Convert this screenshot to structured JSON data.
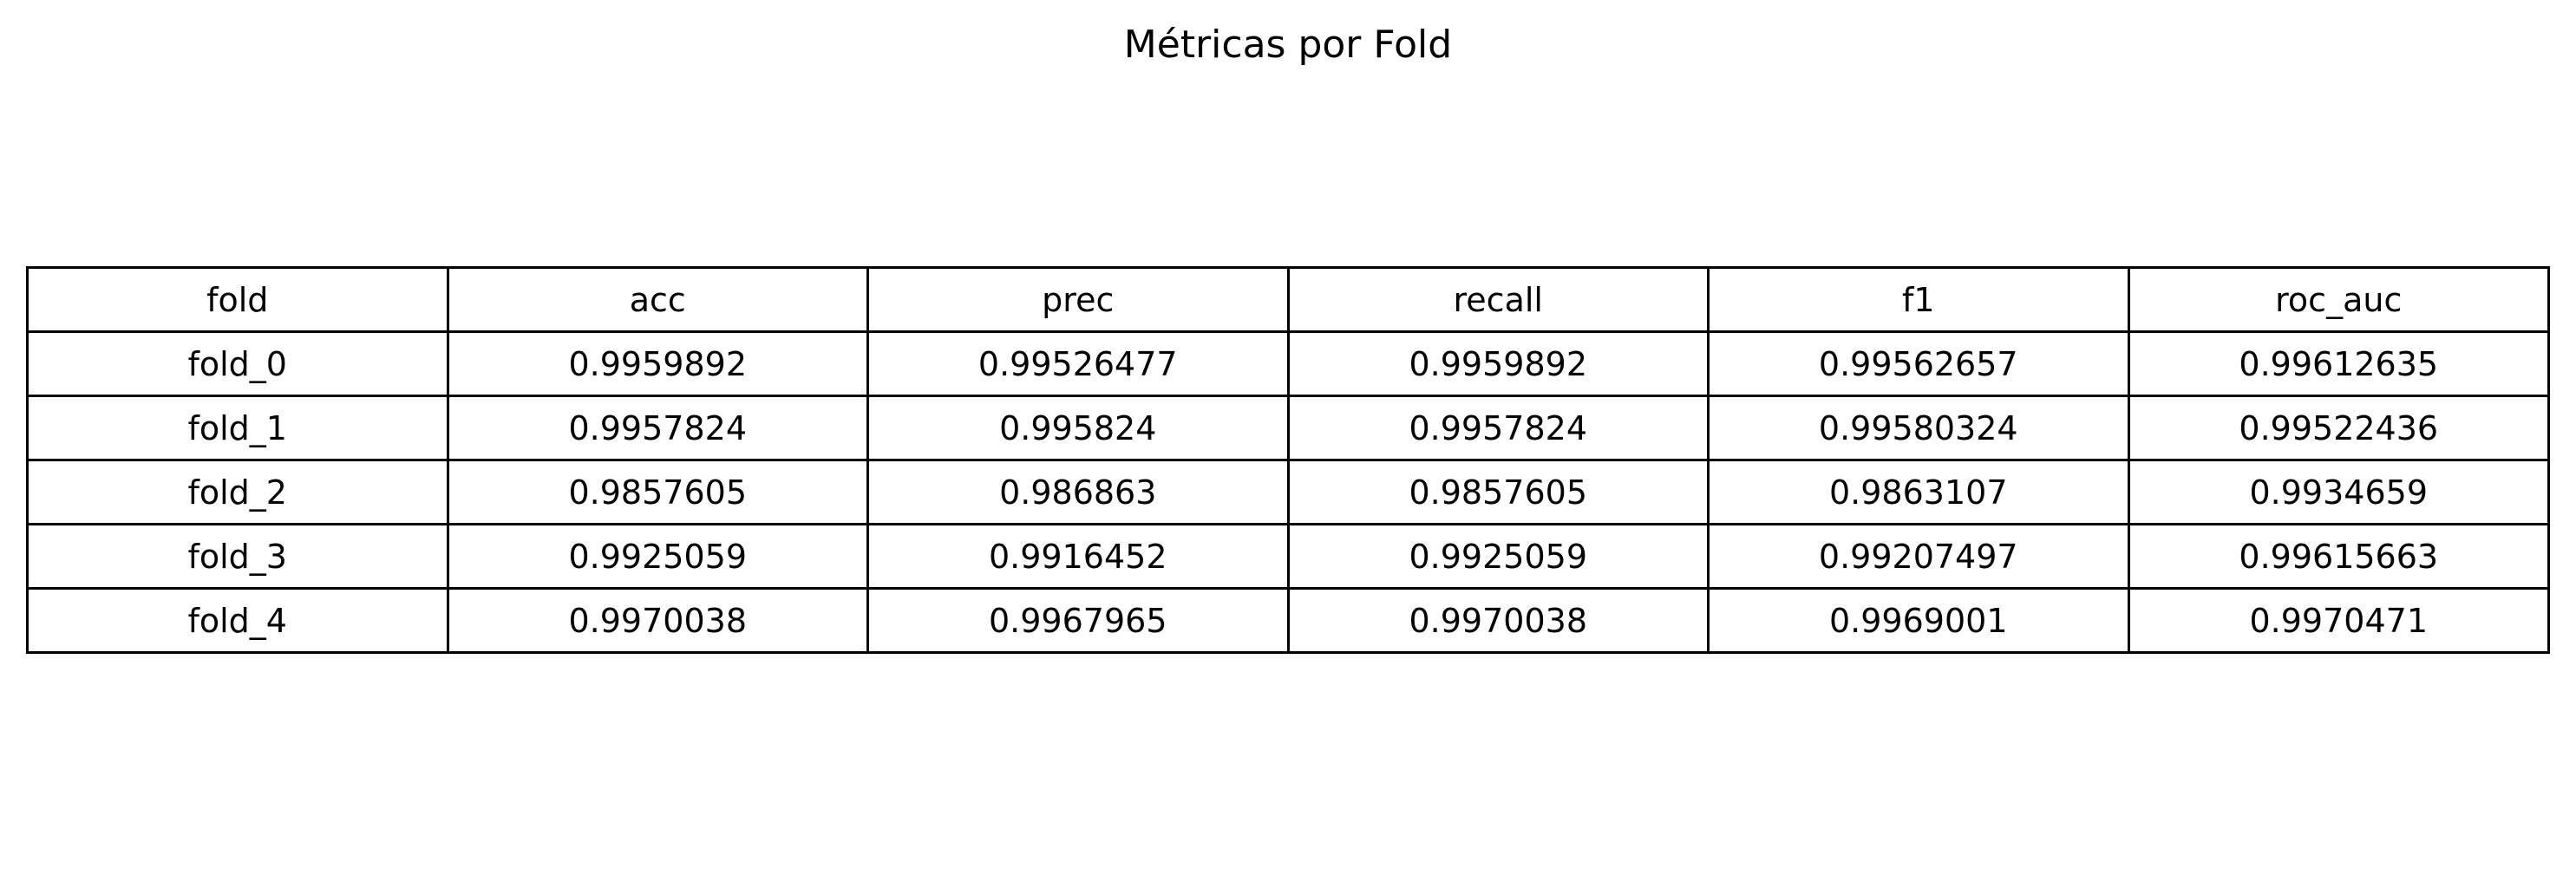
{
  "chart_data": {
    "type": "table",
    "title": "Métricas por Fold",
    "columns": [
      "fold",
      "acc",
      "prec",
      "recall",
      "f1",
      "roc_auc"
    ],
    "rows": [
      [
        "fold_0",
        "0.9959892",
        "0.99526477",
        "0.9959892",
        "0.99562657",
        "0.99612635"
      ],
      [
        "fold_1",
        "0.9957824",
        "0.995824",
        "0.9957824",
        "0.99580324",
        "0.99522436"
      ],
      [
        "fold_2",
        "0.9857605",
        "0.986863",
        "0.9857605",
        "0.9863107",
        "0.9934659"
      ],
      [
        "fold_3",
        "0.9925059",
        "0.9916452",
        "0.9925059",
        "0.99207497",
        "0.99615663"
      ],
      [
        "fold_4",
        "0.9970038",
        "0.9967965",
        "0.9970038",
        "0.9969001",
        "0.9970471"
      ]
    ]
  }
}
